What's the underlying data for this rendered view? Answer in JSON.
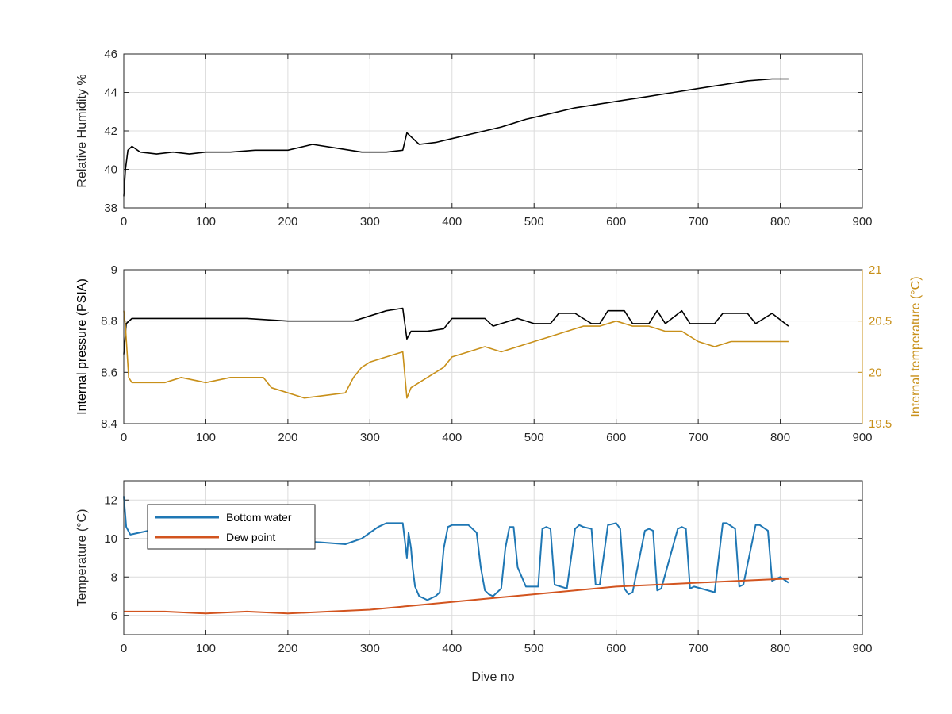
{
  "colors": {
    "black": "#000000",
    "axis": "#262626",
    "grid": "#dcdcdc",
    "temp_gold": "#C8901A",
    "bottom_water_blue": "#1F77B4",
    "dew_point_orange": "#D2541F"
  },
  "chart_data": [
    {
      "id": "humidity",
      "type": "line",
      "xlabel": "",
      "ylabel": "Relative Humidity %",
      "xlim": [
        0,
        900
      ],
      "ylim": [
        38,
        46
      ],
      "xticks": [
        0,
        100,
        200,
        300,
        400,
        500,
        600,
        700,
        800,
        900
      ],
      "yticks": [
        38,
        40,
        42,
        44,
        46
      ],
      "grid": true,
      "series": [
        {
          "color": "#000000",
          "x": [
            0,
            2,
            5,
            10,
            20,
            40,
            60,
            80,
            100,
            130,
            160,
            200,
            230,
            260,
            290,
            320,
            340,
            345,
            360,
            380,
            400,
            430,
            460,
            490,
            520,
            550,
            580,
            610,
            640,
            670,
            700,
            730,
            760,
            790,
            810
          ],
          "y": [
            38.6,
            40.0,
            41.0,
            41.2,
            40.9,
            40.8,
            40.9,
            40.8,
            40.9,
            40.9,
            41.0,
            41.0,
            41.3,
            41.1,
            40.9,
            40.9,
            41.0,
            41.9,
            41.3,
            41.4,
            41.6,
            41.9,
            42.2,
            42.6,
            42.9,
            43.2,
            43.4,
            43.6,
            43.8,
            44.0,
            44.2,
            44.4,
            44.6,
            44.7,
            44.7
          ]
        }
      ]
    },
    {
      "id": "pressure-temperature",
      "type": "line",
      "xlabel": "",
      "ylabel": "Internal pressure (PSIA)",
      "y2label": "Internal temperature (°C)",
      "xlim": [
        0,
        900
      ],
      "ylim": [
        8.4,
        9
      ],
      "y2lim": [
        19.5,
        21
      ],
      "xticks": [
        0,
        100,
        200,
        300,
        400,
        500,
        600,
        700,
        800,
        900
      ],
      "yticks": [
        8.4,
        8.6,
        8.8,
        9
      ],
      "y2ticks": [
        19.5,
        20,
        20.5,
        21
      ],
      "grid": true,
      "series": [
        {
          "axis": "left",
          "color": "#000000",
          "x": [
            0,
            3,
            10,
            50,
            100,
            150,
            200,
            250,
            280,
            300,
            320,
            340,
            345,
            350,
            370,
            390,
            400,
            440,
            450,
            480,
            500,
            520,
            530,
            550,
            570,
            580,
            590,
            610,
            620,
            640,
            650,
            660,
            680,
            690,
            720,
            730,
            760,
            770,
            790,
            810
          ],
          "y": [
            8.67,
            8.79,
            8.81,
            8.81,
            8.81,
            8.81,
            8.8,
            8.8,
            8.8,
            8.82,
            8.84,
            8.85,
            8.73,
            8.76,
            8.76,
            8.77,
            8.81,
            8.81,
            8.78,
            8.81,
            8.79,
            8.79,
            8.83,
            8.83,
            8.79,
            8.79,
            8.84,
            8.84,
            8.79,
            8.79,
            8.84,
            8.79,
            8.84,
            8.79,
            8.79,
            8.83,
            8.83,
            8.79,
            8.83,
            8.78
          ]
        },
        {
          "axis": "right",
          "color": "#C8901A",
          "x": [
            0,
            2,
            6,
            10,
            20,
            50,
            70,
            100,
            130,
            170,
            180,
            200,
            220,
            250,
            270,
            280,
            290,
            300,
            320,
            340,
            345,
            350,
            370,
            390,
            400,
            420,
            440,
            460,
            480,
            500,
            520,
            540,
            560,
            580,
            600,
            620,
            640,
            660,
            680,
            700,
            720,
            740,
            760,
            780,
            800,
            810
          ],
          "y": [
            20.6,
            20.45,
            19.95,
            19.9,
            19.9,
            19.9,
            19.95,
            19.9,
            19.95,
            19.95,
            19.85,
            19.8,
            19.75,
            19.78,
            19.8,
            19.95,
            20.05,
            20.1,
            20.15,
            20.2,
            19.75,
            19.85,
            19.95,
            20.05,
            20.15,
            20.2,
            20.25,
            20.2,
            20.25,
            20.3,
            20.35,
            20.4,
            20.45,
            20.45,
            20.5,
            20.45,
            20.45,
            20.4,
            20.4,
            20.3,
            20.25,
            20.3,
            20.3,
            20.3,
            20.3,
            20.3
          ]
        }
      ]
    },
    {
      "id": "temperature",
      "type": "line",
      "xlabel": "Dive no",
      "ylabel": "Temperature (°C)",
      "xlim": [
        0,
        900
      ],
      "ylim": [
        5,
        13
      ],
      "xticks": [
        0,
        100,
        200,
        300,
        400,
        500,
        600,
        700,
        800,
        900
      ],
      "yticks": [
        6,
        8,
        10,
        12
      ],
      "grid": true,
      "legend": "upper-left",
      "series": [
        {
          "name": "Bottom water",
          "color": "#1F77B4",
          "x": [
            0,
            3,
            8,
            30,
            60,
            100,
            130,
            160,
            200,
            240,
            270,
            290,
            300,
            310,
            320,
            330,
            340,
            345,
            347,
            350,
            352,
            355,
            360,
            370,
            380,
            385,
            390,
            395,
            400,
            420,
            430,
            435,
            440,
            445,
            450,
            460,
            465,
            470,
            475,
            480,
            490,
            505,
            510,
            515,
            520,
            525,
            540,
            550,
            555,
            560,
            570,
            575,
            580,
            590,
            600,
            605,
            610,
            615,
            620,
            635,
            640,
            645,
            650,
            655,
            675,
            680,
            685,
            690,
            695,
            720,
            730,
            735,
            745,
            750,
            755,
            770,
            775,
            785,
            790,
            800,
            810
          ],
          "y": [
            12.2,
            10.6,
            10.2,
            10.4,
            10.2,
            10.2,
            10.0,
            10.0,
            9.9,
            9.8,
            9.7,
            10.0,
            10.3,
            10.6,
            10.8,
            10.8,
            10.8,
            9.0,
            10.3,
            9.5,
            8.5,
            7.5,
            7.0,
            6.8,
            7.0,
            7.2,
            9.5,
            10.6,
            10.7,
            10.7,
            10.3,
            8.5,
            7.3,
            7.1,
            7.0,
            7.4,
            9.5,
            10.6,
            10.6,
            8.5,
            7.5,
            7.5,
            10.5,
            10.6,
            10.5,
            7.6,
            7.4,
            10.5,
            10.7,
            10.6,
            10.5,
            7.6,
            7.6,
            10.7,
            10.8,
            10.5,
            7.4,
            7.1,
            7.2,
            10.4,
            10.5,
            10.4,
            7.3,
            7.4,
            10.5,
            10.6,
            10.5,
            7.4,
            7.5,
            7.2,
            10.8,
            10.8,
            10.5,
            7.5,
            7.6,
            10.7,
            10.7,
            10.4,
            7.8,
            8.0,
            7.7
          ]
        },
        {
          "name": "Dew point",
          "color": "#D2541F",
          "x": [
            0,
            20,
            50,
            100,
            150,
            200,
            250,
            300,
            350,
            400,
            450,
            500,
            550,
            600,
            650,
            700,
            750,
            800,
            810
          ],
          "y": [
            6.2,
            6.2,
            6.2,
            6.1,
            6.2,
            6.1,
            6.2,
            6.3,
            6.5,
            6.7,
            6.9,
            7.1,
            7.3,
            7.5,
            7.6,
            7.7,
            7.8,
            7.9,
            7.9
          ]
        }
      ]
    }
  ]
}
